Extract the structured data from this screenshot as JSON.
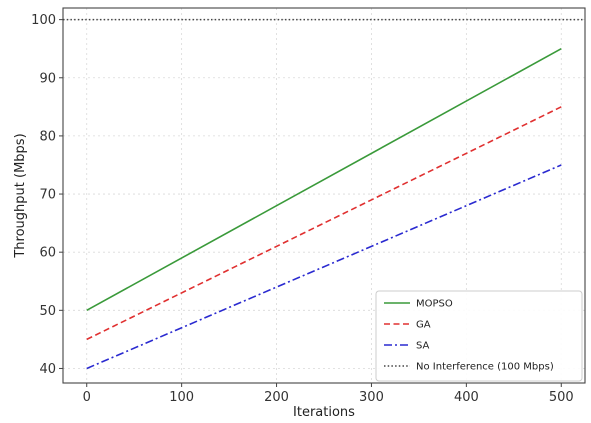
{
  "chart_data": {
    "type": "line",
    "title": "",
    "xlabel": "Iterations",
    "ylabel": "Throughput (Mbps)",
    "xlim": [
      -25,
      525
    ],
    "ylim": [
      37.5,
      102
    ],
    "xticks": [
      0,
      100,
      200,
      300,
      400,
      500
    ],
    "yticks": [
      40,
      50,
      60,
      70,
      80,
      90,
      100
    ],
    "grid": true,
    "legend_position": "lower-right",
    "series": [
      {
        "name": "MOPSO",
        "x": [
          0,
          500
        ],
        "y": [
          50,
          95
        ],
        "color": "#3a9a3a",
        "style": "solid"
      },
      {
        "name": "GA",
        "x": [
          0,
          500
        ],
        "y": [
          45,
          85
        ],
        "color": "#e03030",
        "style": "dashed"
      },
      {
        "name": "SA",
        "x": [
          0,
          500
        ],
        "y": [
          40,
          75
        ],
        "color": "#2a2ad0",
        "style": "dashdot"
      }
    ],
    "reference_lines": [
      {
        "name": "No Interference (100 Mbps)",
        "y": 100,
        "color": "#444444",
        "style": "dotted"
      }
    ]
  }
}
